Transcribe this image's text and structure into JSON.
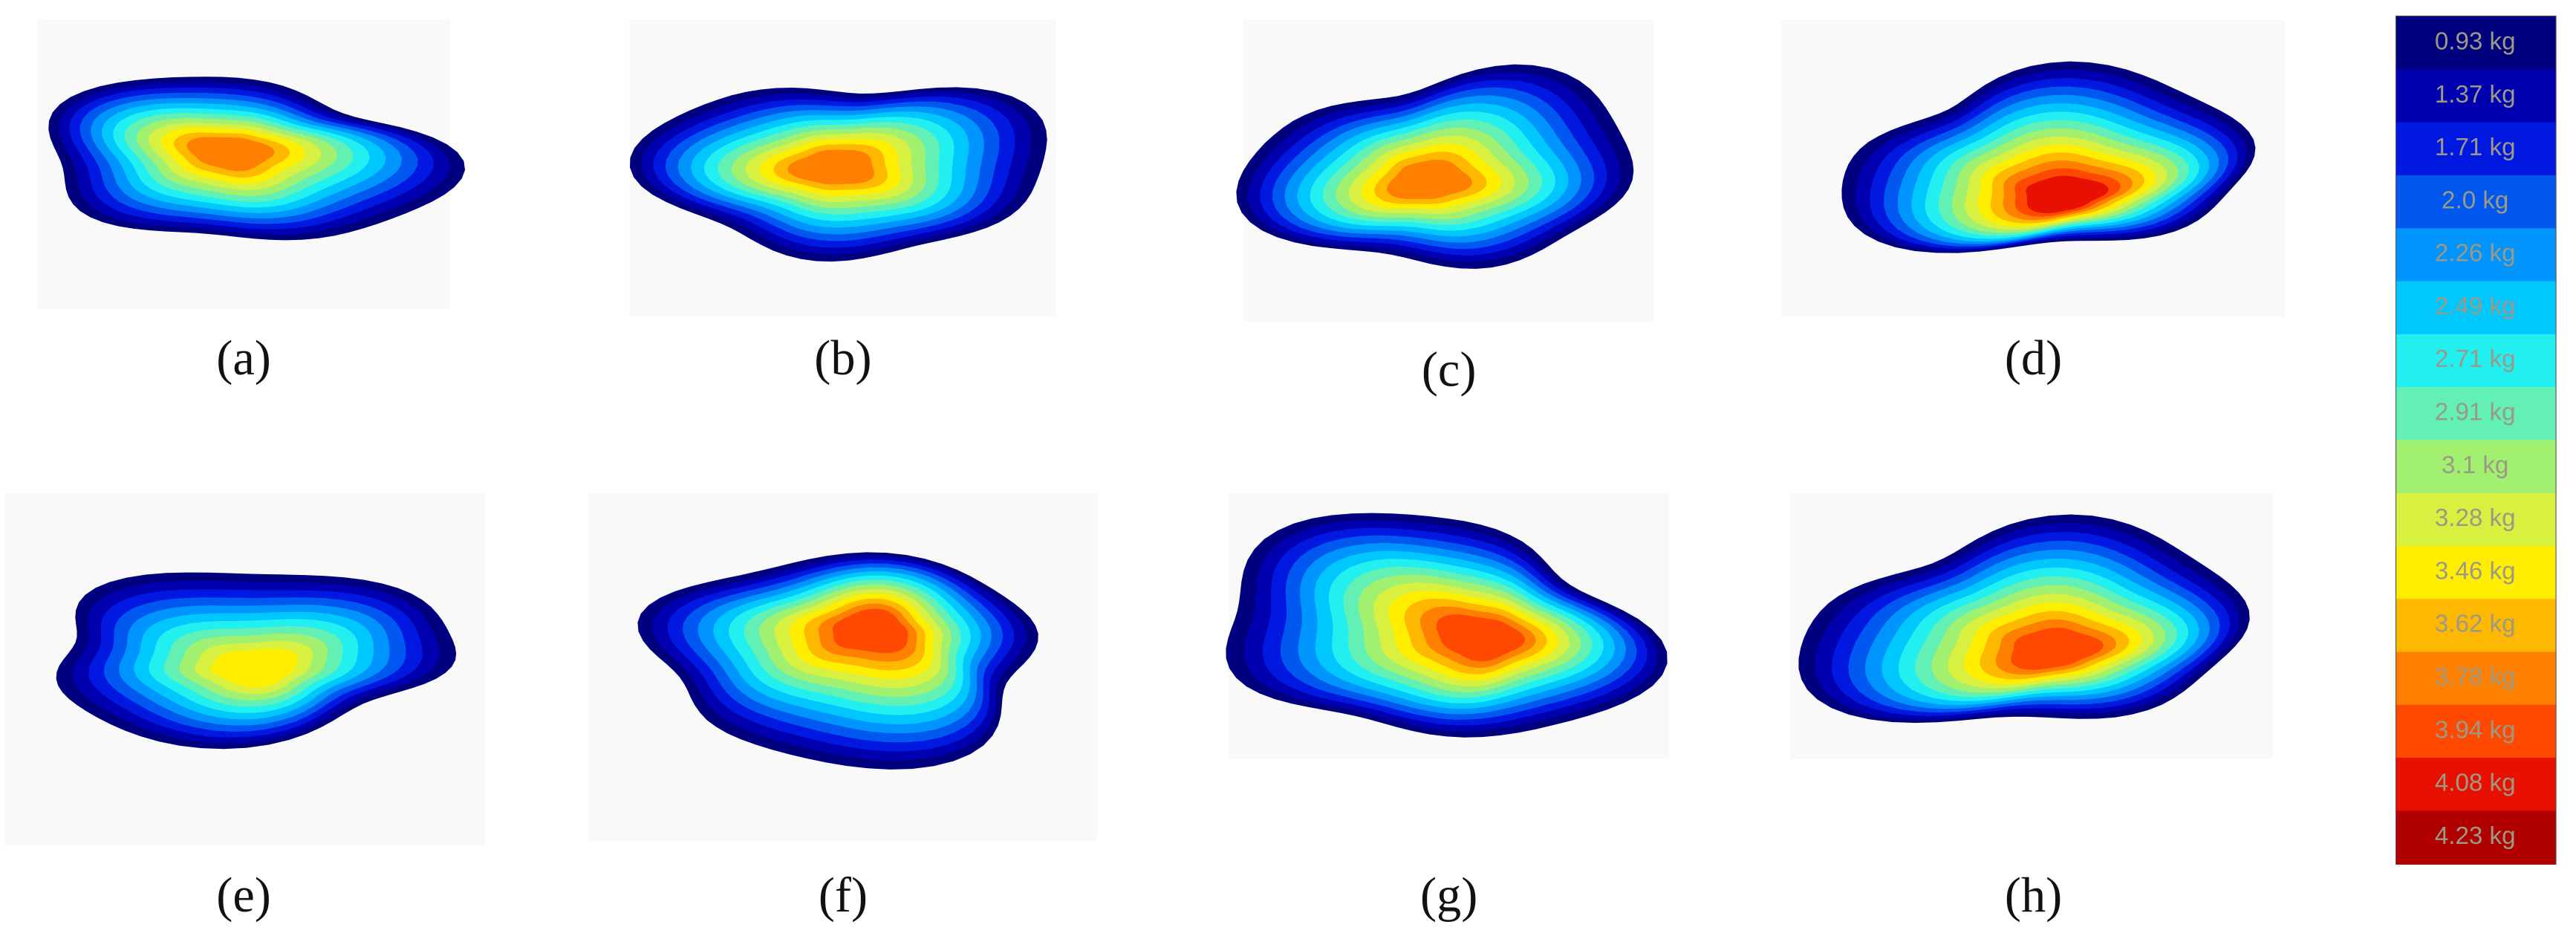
{
  "panels": [
    {
      "label": "(a)"
    },
    {
      "label": "(b)"
    },
    {
      "label": "(c)"
    },
    {
      "label": "(d)"
    },
    {
      "label": "(e)"
    },
    {
      "label": "(f)"
    },
    {
      "label": "(g)"
    },
    {
      "label": "(h)"
    }
  ],
  "legend": {
    "entries": [
      {
        "label": "0.93 kg",
        "color": "#00007f"
      },
      {
        "label": "1.37 kg",
        "color": "#0000b0"
      },
      {
        "label": "1.71 kg",
        "color": "#0018e0"
      },
      {
        "label": "2.0 kg",
        "color": "#0058f0"
      },
      {
        "label": "2.26 kg",
        "color": "#0094ff"
      },
      {
        "label": "2.49 kg",
        "color": "#00c8ff"
      },
      {
        "label": "2.71 kg",
        "color": "#22f0f0"
      },
      {
        "label": "2.91 kg",
        "color": "#62f0b4"
      },
      {
        "label": "3.1 kg",
        "color": "#a2f070"
      },
      {
        "label": "3.28 kg",
        "color": "#d8f040"
      },
      {
        "label": "3.46 kg",
        "color": "#ffee00"
      },
      {
        "label": "3.62 kg",
        "color": "#ffb800"
      },
      {
        "label": "3.78 kg",
        "color": "#ff8000"
      },
      {
        "label": "3.94 kg",
        "color": "#ff4800"
      },
      {
        "label": "4.08 kg",
        "color": "#e81000"
      },
      {
        "label": "4.23 kg",
        "color": "#b00000"
      }
    ]
  }
}
